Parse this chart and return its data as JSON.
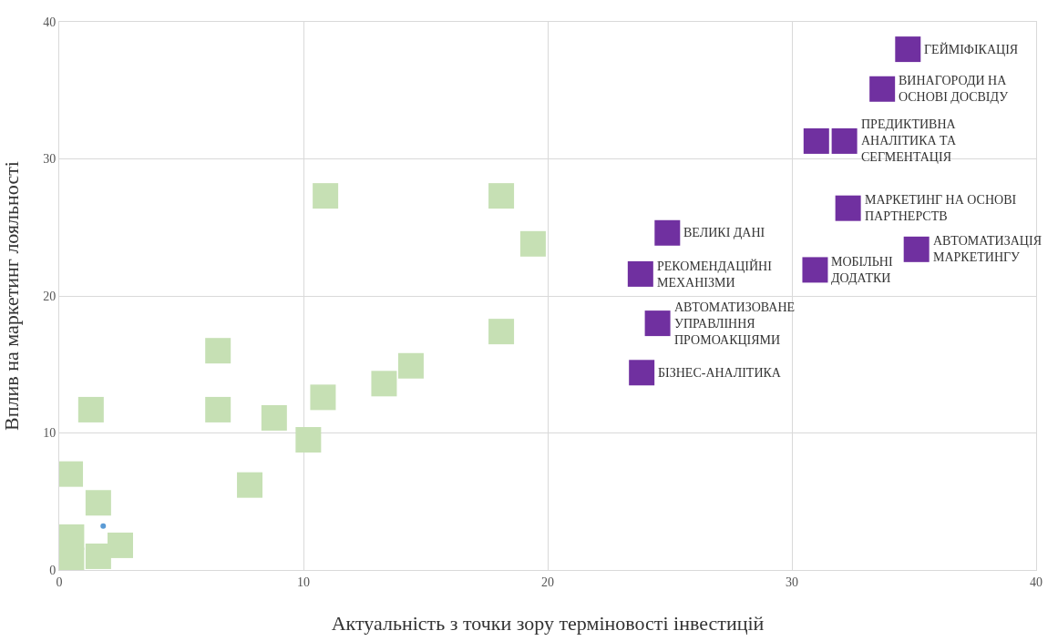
{
  "chart_data": {
    "type": "scatter",
    "xlabel": "Актуальність з точки зору терміновості інвестицій",
    "ylabel": "Вплив на маркетинг лояльності",
    "xlim": [
      0,
      40
    ],
    "ylim": [
      0,
      40
    ],
    "xticks": [
      0,
      10,
      20,
      30,
      40
    ],
    "yticks": [
      0,
      10,
      20,
      30,
      40
    ],
    "grid": true,
    "marker": "square",
    "series": [
      {
        "color": "#c6e0b4",
        "x": [
          0.45,
          0.5,
          0.5,
          1.3,
          1.6,
          1.6,
          2.5,
          6.5,
          6.5,
          7.8,
          8.8,
          10.2,
          10.9,
          10.8,
          13.3,
          14.4,
          18.1,
          18.1,
          19.4
        ],
        "values": [
          7.0,
          2.4,
          0.7,
          11.7,
          4.9,
          1.0,
          1.8,
          16.0,
          11.7,
          6.2,
          11.1,
          9.5,
          27.3,
          12.6,
          13.6,
          14.9,
          27.3,
          17.4,
          23.8
        ]
      },
      {
        "color": "#7030a0",
        "x": [
          34.75,
          33.7,
          31.0,
          32.15,
          32.3,
          24.9,
          35.1,
          30.95,
          23.8,
          24.5,
          23.85
        ],
        "values": [
          38.0,
          35.1,
          31.3,
          31.3,
          26.4,
          24.6,
          23.4,
          21.9,
          21.6,
          18.0,
          14.4
        ]
      },
      {
        "color": "#5b9bd5",
        "marker": "circle",
        "x": [
          1.8
        ],
        "values": [
          3.2
        ]
      }
    ],
    "annotations": [
      {
        "text": "ГЕЙМІФІКАЦІЯ",
        "x": 34.75,
        "y": 38.0
      },
      {
        "text": "ВИНАГОРОДИ НА\nОСНОВІ ДОСВІДУ",
        "x": 33.7,
        "y": 35.1
      },
      {
        "text": "ПРЕДИКТИВНА\nАНАЛІТИКА ТА\nСЕГМЕНТАЦІЯ",
        "x": 32.15,
        "y": 31.3
      },
      {
        "text": "МАРКЕТИНГ НА ОСНОВІ\nПАРТНЕРСТВ",
        "x": 32.3,
        "y": 26.4
      },
      {
        "text": "ВЕЛИКІ ДАНІ",
        "x": 24.9,
        "y": 24.6
      },
      {
        "text": "АВТОМАТИЗАЦІЯ\nМАРКЕТИНГУ",
        "x": 35.1,
        "y": 23.4
      },
      {
        "text": "МОБІЛЬНІ\nДОДАТКИ",
        "x": 30.95,
        "y": 21.9
      },
      {
        "text": "РЕКОМЕНДАЦІЙНІ\nМЕХАНІЗМИ",
        "x": 23.8,
        "y": 21.6
      },
      {
        "text": "АВТОМАТИЗОВАНЕ\nУПРАВЛІННЯ\nПРОМОАКЦІЯМИ",
        "x": 24.5,
        "y": 18.0
      },
      {
        "text": "БІЗНЕС-АНАЛІТИКА",
        "x": 23.85,
        "y": 14.4
      }
    ]
  }
}
